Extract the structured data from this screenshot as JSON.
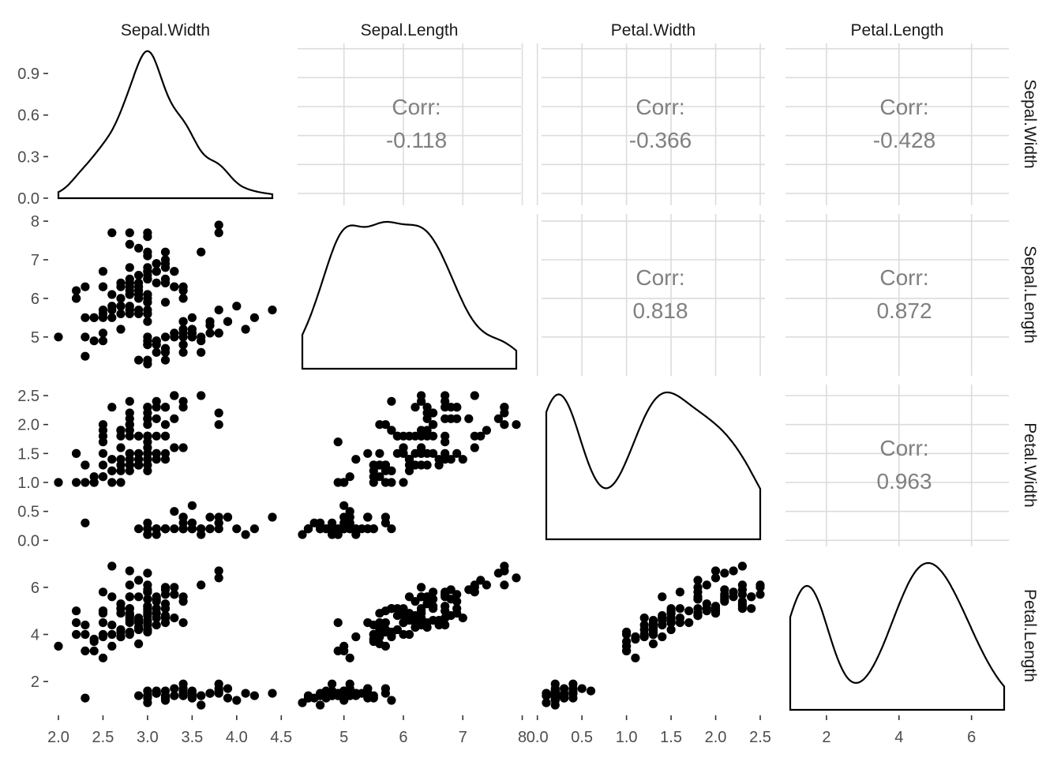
{
  "chart_data": {
    "type": "scatter",
    "variables": [
      "Sepal.Width",
      "Sepal.Length",
      "Petal.Width",
      "Petal.Length"
    ],
    "ranges": {
      "Sepal.Width": [
        2.0,
        4.4
      ],
      "Sepal.Length": [
        4.3,
        7.9
      ],
      "Petal.Width": [
        0.1,
        2.5
      ],
      "Petal.Length": [
        1.0,
        6.9
      ]
    },
    "axis_ticks": {
      "Sepal.Width": [
        2.0,
        2.5,
        3.0,
        3.5,
        4.0,
        4.5
      ],
      "Sepal.Length": [
        5,
        6,
        7,
        8
      ],
      "Petal.Width": [
        0.0,
        0.5,
        1.0,
        1.5,
        2.0,
        2.5
      ],
      "Petal.Length": [
        2,
        4,
        6
      ]
    },
    "x_tick_labels": {
      "Sepal.Width": [
        "2.0",
        "2.5",
        "3.0",
        "3.5",
        "4.0",
        "4.5"
      ],
      "Sepal.Length": [
        "5",
        "6",
        "7",
        "8"
      ],
      "Petal.Width": [
        "0.0",
        "0.5",
        "1.0",
        "1.5",
        "2.0",
        "2.5"
      ],
      "Petal.Length": [
        "2",
        "4",
        "6"
      ]
    },
    "y_tick_labels": {
      "Sepal.Width": [
        "0.0",
        "0.3",
        "0.6",
        "0.9"
      ],
      "Sepal.Length": [
        "5",
        "6",
        "7",
        "8"
      ],
      "Petal.Width": [
        "0.0",
        "0.5",
        "1.0",
        "1.5",
        "2.0",
        "2.5"
      ],
      "Petal.Length": [
        "2",
        "4",
        "6"
      ]
    },
    "density_y_ticks": [
      0.0,
      0.3,
      0.6,
      0.9
    ],
    "density_y_range": [
      0,
      1.06
    ],
    "correlations": [
      {
        "row": "Sepal.Width",
        "col": "Sepal.Length",
        "label": "Corr:",
        "value": "-0.118"
      },
      {
        "row": "Sepal.Width",
        "col": "Petal.Width",
        "label": "Corr:",
        "value": "-0.366"
      },
      {
        "row": "Sepal.Width",
        "col": "Petal.Length",
        "label": "Corr:",
        "value": "-0.428"
      },
      {
        "row": "Sepal.Length",
        "col": "Petal.Width",
        "label": "Corr:",
        "value": "0.818"
      },
      {
        "row": "Sepal.Length",
        "col": "Petal.Length",
        "label": "Corr:",
        "value": "0.872"
      },
      {
        "row": "Petal.Width",
        "col": "Petal.Length",
        "label": "Corr:",
        "value": "0.963"
      }
    ],
    "grid": true,
    "point_color": "#000000",
    "observations": {
      "Sepal.Length": [
        5.1,
        4.9,
        4.7,
        4.6,
        5.0,
        5.4,
        4.6,
        5.0,
        4.4,
        4.9,
        5.4,
        4.8,
        4.8,
        4.3,
        5.8,
        5.7,
        5.4,
        5.1,
        5.7,
        5.1,
        5.4,
        5.1,
        4.6,
        5.1,
        4.8,
        5.0,
        5.0,
        5.2,
        5.2,
        4.7,
        4.8,
        5.4,
        5.2,
        5.5,
        4.9,
        5.0,
        5.5,
        4.9,
        4.4,
        5.1,
        5.0,
        4.5,
        4.4,
        5.0,
        5.1,
        4.8,
        5.1,
        4.6,
        5.3,
        5.0,
        7.0,
        6.4,
        6.9,
        5.5,
        6.5,
        5.7,
        6.3,
        4.9,
        6.6,
        5.2,
        5.0,
        5.9,
        6.0,
        6.1,
        5.6,
        6.7,
        5.6,
        5.8,
        6.2,
        5.6,
        5.9,
        6.1,
        6.3,
        6.1,
        6.4,
        6.6,
        6.8,
        6.7,
        6.0,
        5.7,
        5.5,
        5.5,
        5.8,
        6.0,
        5.4,
        6.0,
        6.7,
        6.3,
        5.6,
        5.5,
        5.5,
        6.1,
        5.8,
        5.0,
        5.6,
        5.7,
        5.7,
        6.2,
        5.1,
        5.7,
        6.3,
        5.8,
        7.1,
        6.3,
        6.5,
        7.6,
        4.9,
        7.3,
        6.7,
        7.2,
        6.5,
        6.4,
        6.8,
        5.7,
        5.8,
        6.4,
        6.5,
        7.7,
        7.7,
        6.0,
        6.9,
        5.6,
        7.7,
        6.3,
        6.7,
        7.2,
        6.2,
        6.1,
        6.4,
        7.2,
        7.4,
        7.9,
        6.4,
        6.3,
        6.1,
        7.7,
        6.3,
        6.4,
        6.0,
        6.9,
        6.7,
        6.9,
        5.8,
        6.8,
        6.7,
        6.7,
        6.3,
        6.5,
        6.2,
        5.9
      ],
      "Sepal.Width": [
        3.5,
        3.0,
        3.2,
        3.1,
        3.6,
        3.9,
        3.4,
        3.4,
        2.9,
        3.1,
        3.7,
        3.4,
        3.0,
        3.0,
        4.0,
        4.4,
        3.9,
        3.5,
        3.8,
        3.8,
        3.4,
        3.7,
        3.6,
        3.3,
        3.4,
        3.0,
        3.4,
        3.5,
        3.4,
        3.2,
        3.1,
        3.4,
        4.1,
        4.2,
        3.1,
        3.2,
        3.5,
        3.6,
        3.0,
        3.4,
        3.5,
        2.3,
        3.2,
        3.5,
        3.8,
        3.0,
        3.8,
        3.2,
        3.7,
        3.3,
        3.2,
        3.2,
        3.1,
        2.3,
        2.8,
        2.8,
        3.3,
        2.4,
        2.9,
        2.7,
        2.0,
        3.0,
        2.2,
        2.9,
        2.9,
        3.1,
        3.0,
        2.7,
        2.2,
        2.5,
        3.2,
        2.8,
        2.5,
        2.8,
        2.9,
        3.0,
        2.8,
        3.0,
        2.9,
        2.6,
        2.4,
        2.4,
        2.7,
        2.7,
        3.0,
        3.4,
        3.1,
        2.3,
        3.0,
        2.5,
        2.6,
        3.0,
        2.6,
        2.3,
        2.7,
        3.0,
        2.9,
        2.9,
        2.5,
        2.8,
        3.3,
        2.7,
        3.0,
        2.9,
        3.0,
        3.0,
        2.5,
        2.9,
        2.5,
        3.6,
        3.2,
        2.7,
        3.0,
        2.5,
        2.8,
        3.2,
        3.0,
        3.8,
        2.6,
        2.2,
        3.2,
        2.8,
        2.8,
        2.7,
        3.3,
        3.2,
        2.8,
        3.0,
        2.8,
        3.0,
        2.8,
        3.8,
        2.8,
        2.8,
        2.6,
        3.0,
        3.4,
        3.1,
        3.0,
        3.1,
        3.1,
        3.1,
        2.7,
        3.2,
        3.3,
        3.0,
        2.5,
        3.0,
        3.4,
        3.0
      ],
      "Petal.Length": [
        1.4,
        1.4,
        1.3,
        1.5,
        1.4,
        1.7,
        1.4,
        1.5,
        1.4,
        1.5,
        1.5,
        1.6,
        1.4,
        1.1,
        1.2,
        1.5,
        1.3,
        1.4,
        1.7,
        1.5,
        1.7,
        1.5,
        1.0,
        1.7,
        1.9,
        1.6,
        1.6,
        1.5,
        1.4,
        1.6,
        1.6,
        1.5,
        1.5,
        1.4,
        1.5,
        1.2,
        1.3,
        1.4,
        1.3,
        1.5,
        1.3,
        1.3,
        1.3,
        1.6,
        1.9,
        1.4,
        1.6,
        1.4,
        1.5,
        1.4,
        4.7,
        4.5,
        4.9,
        4.0,
        4.6,
        4.5,
        4.7,
        3.3,
        4.6,
        3.9,
        3.5,
        4.2,
        4.0,
        4.7,
        3.6,
        4.4,
        4.5,
        4.1,
        4.5,
        3.9,
        4.8,
        4.0,
        4.9,
        4.7,
        4.3,
        4.4,
        4.8,
        5.0,
        4.5,
        3.5,
        3.8,
        3.7,
        3.9,
        5.1,
        4.5,
        4.5,
        4.7,
        4.4,
        4.1,
        4.0,
        4.4,
        4.6,
        4.0,
        3.3,
        4.2,
        4.2,
        4.2,
        4.3,
        3.0,
        4.1,
        6.0,
        5.1,
        5.9,
        5.6,
        5.8,
        6.6,
        4.5,
        6.3,
        5.8,
        6.1,
        5.1,
        5.3,
        5.5,
        5.0,
        5.1,
        5.3,
        5.5,
        6.7,
        6.9,
        5.0,
        5.7,
        4.9,
        6.7,
        4.9,
        5.7,
        6.0,
        4.8,
        4.9,
        5.6,
        5.8,
        6.1,
        6.4,
        5.6,
        5.1,
        5.6,
        6.1,
        5.6,
        5.5,
        4.8,
        5.4,
        5.6,
        5.1,
        5.1,
        5.9,
        5.7,
        5.2,
        5.0,
        5.2,
        5.4,
        5.1
      ],
      "Petal.Width": [
        0.2,
        0.2,
        0.2,
        0.2,
        0.2,
        0.4,
        0.3,
        0.2,
        0.2,
        0.1,
        0.2,
        0.2,
        0.1,
        0.1,
        0.2,
        0.4,
        0.4,
        0.3,
        0.3,
        0.3,
        0.2,
        0.4,
        0.2,
        0.5,
        0.2,
        0.2,
        0.4,
        0.2,
        0.2,
        0.2,
        0.2,
        0.4,
        0.1,
        0.2,
        0.2,
        0.2,
        0.2,
        0.1,
        0.2,
        0.2,
        0.3,
        0.3,
        0.2,
        0.6,
        0.4,
        0.3,
        0.2,
        0.2,
        0.2,
        0.2,
        1.4,
        1.5,
        1.5,
        1.3,
        1.5,
        1.3,
        1.6,
        1.0,
        1.3,
        1.4,
        1.0,
        1.5,
        1.0,
        1.4,
        1.3,
        1.4,
        1.5,
        1.0,
        1.5,
        1.1,
        1.8,
        1.3,
        1.5,
        1.2,
        1.3,
        1.4,
        1.4,
        1.7,
        1.5,
        1.0,
        1.1,
        1.0,
        1.2,
        1.6,
        1.5,
        1.6,
        1.5,
        1.3,
        1.3,
        1.3,
        1.2,
        1.4,
        1.2,
        1.0,
        1.3,
        1.2,
        1.3,
        1.3,
        1.1,
        1.3,
        2.5,
        1.9,
        2.1,
        1.8,
        2.2,
        2.1,
        1.7,
        1.8,
        1.8,
        2.5,
        2.0,
        1.9,
        2.1,
        2.0,
        2.4,
        2.3,
        1.8,
        2.2,
        2.3,
        1.5,
        2.3,
        2.0,
        2.0,
        1.8,
        2.1,
        1.8,
        1.8,
        1.8,
        2.1,
        1.6,
        1.9,
        2.0,
        2.2,
        1.5,
        1.4,
        2.3,
        2.4,
        1.8,
        1.8,
        2.1,
        2.4,
        2.3,
        1.9,
        2.3,
        2.5,
        2.3,
        1.9,
        2.0,
        2.3,
        1.8
      ]
    }
  }
}
